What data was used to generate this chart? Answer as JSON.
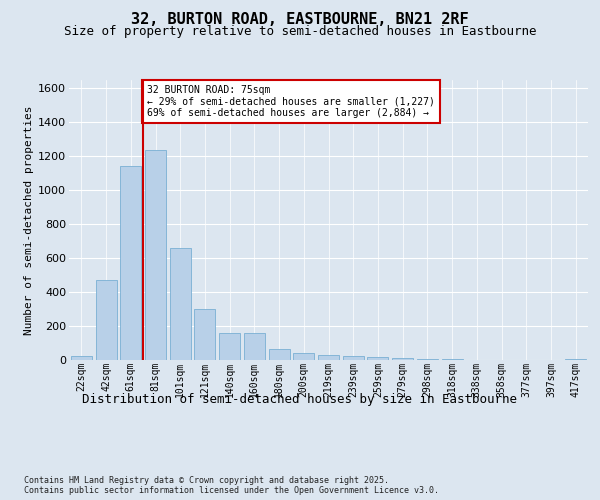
{
  "title": "32, BURTON ROAD, EASTBOURNE, BN21 2RF",
  "subtitle": "Size of property relative to semi-detached houses in Eastbourne",
  "xlabel": "Distribution of semi-detached houses by size in Eastbourne",
  "ylabel": "Number of semi-detached properties",
  "categories": [
    "22sqm",
    "42sqm",
    "61sqm",
    "81sqm",
    "101sqm",
    "121sqm",
    "140sqm",
    "160sqm",
    "180sqm",
    "200sqm",
    "219sqm",
    "239sqm",
    "259sqm",
    "279sqm",
    "298sqm",
    "318sqm",
    "338sqm",
    "358sqm",
    "377sqm",
    "397sqm",
    "417sqm"
  ],
  "values": [
    25,
    470,
    1145,
    1235,
    660,
    300,
    160,
    160,
    65,
    40,
    30,
    25,
    15,
    10,
    5,
    3,
    2,
    1,
    1,
    1,
    8
  ],
  "bar_color": "#b8d0e8",
  "bar_edge_color": "#7aafd4",
  "red_line_x": 2.5,
  "annotation_text": "32 BURTON ROAD: 75sqm\n← 29% of semi-detached houses are smaller (1,227)\n69% of semi-detached houses are larger (2,884) →",
  "annotation_box_facecolor": "#ffffff",
  "annotation_box_edgecolor": "#cc0000",
  "ylim": [
    0,
    1650
  ],
  "yticks": [
    0,
    200,
    400,
    600,
    800,
    1000,
    1200,
    1400,
    1600
  ],
  "background_color": "#dce6f0",
  "grid_color": "#ffffff",
  "footer_text": "Contains HM Land Registry data © Crown copyright and database right 2025.\nContains public sector information licensed under the Open Government Licence v3.0.",
  "title_fontsize": 11,
  "subtitle_fontsize": 9,
  "xlabel_fontsize": 9,
  "ylabel_fontsize": 8,
  "tick_fontsize": 7,
  "annotation_fontsize": 7,
  "footer_fontsize": 6
}
